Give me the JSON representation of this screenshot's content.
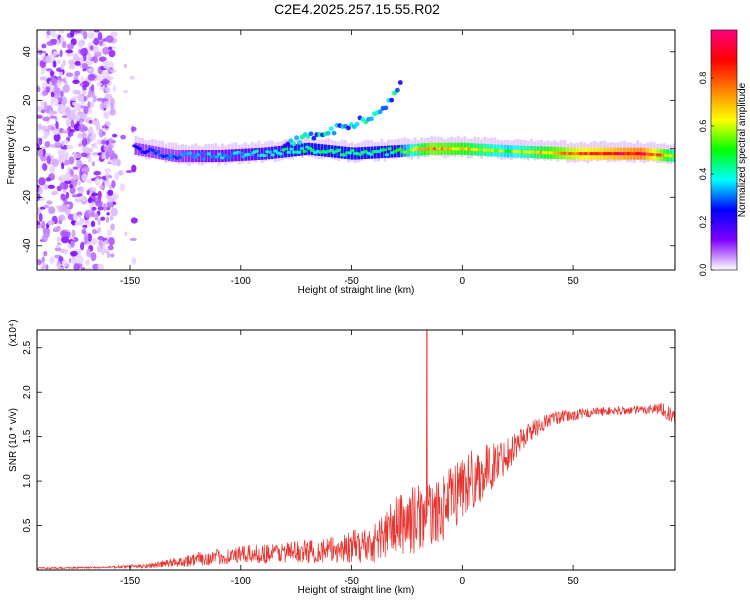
{
  "title": "C2E4.2025.257.15.55.R02",
  "chart_data": [
    {
      "type": "heatmap",
      "title": "C2E4.2025.257.15.55.R02",
      "xlabel": "Height of straight line (km)",
      "ylabel": "Frequency (Hz)",
      "xlim": [
        -192,
        96
      ],
      "ylim": [
        -50,
        49
      ],
      "xticks": [
        -150,
        -100,
        -50,
        0,
        50
      ],
      "xtick_labels": [
        "-150",
        "-100",
        "-50",
        "0",
        "50"
      ],
      "yticks": [
        -40,
        -20,
        0,
        20,
        40
      ],
      "ytick_labels": [
        "-40",
        "-20",
        "0",
        "20",
        "40"
      ],
      "noise_region_x": [
        -192,
        -148
      ],
      "band": [
        {
          "x": -148,
          "f": 0,
          "amp": 0.25
        },
        {
          "x": -130,
          "f": -3,
          "amp": 0.3
        },
        {
          "x": -110,
          "f": -3,
          "amp": 0.35
        },
        {
          "x": -90,
          "f": -2,
          "amp": 0.4
        },
        {
          "x": -70,
          "f": 0,
          "amp": 0.45
        },
        {
          "x": -50,
          "f": -2,
          "amp": 0.45
        },
        {
          "x": -30,
          "f": -1,
          "amp": 0.45
        },
        {
          "x": -15,
          "f": 0,
          "amp": 0.75
        },
        {
          "x": 0,
          "f": 0,
          "amp": 0.7
        },
        {
          "x": 20,
          "f": -1,
          "amp": 0.55
        },
        {
          "x": 50,
          "f": -2,
          "amp": 0.8
        },
        {
          "x": 80,
          "f": -2,
          "amp": 0.95
        },
        {
          "x": 96,
          "f": -3,
          "amp": 0.6
        }
      ],
      "branch": [
        {
          "x": -80,
          "f": 2
        },
        {
          "x": -65,
          "f": 6
        },
        {
          "x": -50,
          "f": 10
        },
        {
          "x": -38,
          "f": 14
        },
        {
          "x": -28,
          "f": 26
        }
      ],
      "colorbar": {
        "label": "Normalized spectral amplitude",
        "range": [
          0,
          1
        ],
        "ticks": [
          0.0,
          0.2,
          0.4,
          0.6,
          0.8
        ],
        "tick_labels": [
          "0.0",
          "0.2",
          "0.4",
          "0.6",
          "0.8"
        ],
        "colors": [
          "#ffffff",
          "#8000ff",
          "#0000ff",
          "#00ffff",
          "#00ff00",
          "#ffff00",
          "#ff8000",
          "#ff0000",
          "#ff0080"
        ]
      }
    },
    {
      "type": "line",
      "xlabel": "Height of straight line (km)",
      "ylabel": "SNR (10 * v/v)",
      "scale_label": "(x10⁴)",
      "xlim": [
        -192,
        96
      ],
      "ylim": [
        0,
        2.7
      ],
      "xticks": [
        -150,
        -100,
        -50,
        0,
        50
      ],
      "xtick_labels": [
        "-150",
        "-100",
        "-50",
        "0",
        "50"
      ],
      "yticks": [
        0.5,
        1.0,
        1.5,
        2.0,
        2.5
      ],
      "ytick_labels": [
        "0.5",
        "1.0",
        "1.5",
        "2.0",
        "2.5"
      ],
      "color": "#e8342f",
      "envelope": {
        "x": [
          -192,
          -160,
          -140,
          -120,
          -100,
          -80,
          -60,
          -40,
          -30,
          -20,
          -17,
          -10,
          0,
          10,
          20,
          30,
          40,
          60,
          80,
          90,
          96
        ],
        "mean": [
          0.02,
          0.03,
          0.05,
          0.12,
          0.17,
          0.2,
          0.22,
          0.3,
          0.5,
          0.58,
          0.62,
          0.65,
          0.95,
          1.1,
          1.3,
          1.55,
          1.7,
          1.78,
          1.8,
          1.82,
          1.7
        ],
        "amp": [
          0.01,
          0.01,
          0.03,
          0.08,
          0.1,
          0.12,
          0.15,
          0.22,
          0.35,
          0.4,
          0.35,
          0.35,
          0.4,
          0.3,
          0.2,
          0.12,
          0.08,
          0.05,
          0.05,
          0.07,
          0.1
        ]
      },
      "spike": {
        "x": -16,
        "y": 2.75
      }
    }
  ]
}
